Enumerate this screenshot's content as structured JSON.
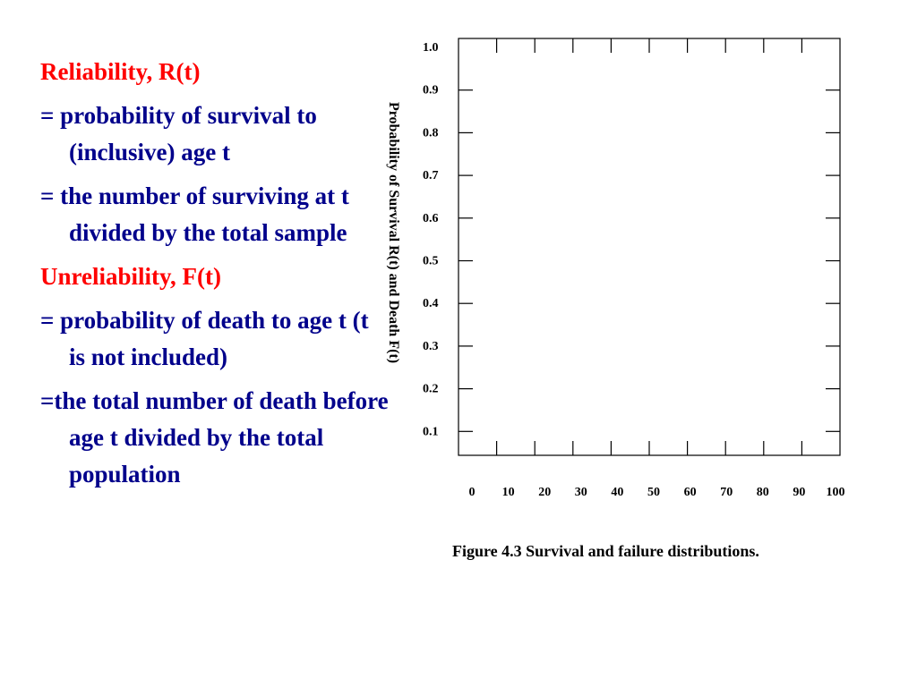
{
  "text": {
    "reliability_heading": "Reliability, R(t)",
    "reliability_def1": "= probability of survival to (inclusive) age t",
    "reliability_def2": "= the number of surviving at t divided by the total sample",
    "unreliability_heading": "Unreliability, F(t)",
    "unreliability_def1": "= probability of  death to age t (t is not included)",
    "unreliability_def2": "=the total number of death before age t divided by the total population"
  },
  "colors": {
    "heading": "#ff0000",
    "body": "#00008b",
    "axis": "#000000"
  },
  "chart_data": {
    "type": "line",
    "title": "",
    "xlabel": "",
    "ylabel": "Probability of  Survival  R(t) and Death F(t)",
    "x_ticks": [
      "0",
      "10",
      "20",
      "30",
      "40",
      "50",
      "60",
      "70",
      "80",
      "90",
      "100"
    ],
    "y_ticks": [
      "0.1",
      "0.2",
      "0.3",
      "0.4",
      "0.5",
      "0.6",
      "0.7",
      "0.8",
      "0.9",
      "1.0"
    ],
    "xlim": [
      0,
      100
    ],
    "ylim": [
      0,
      1.0
    ],
    "series": [],
    "grid": false
  },
  "caption": "Figure 4.3 Survival  and failure distributions."
}
